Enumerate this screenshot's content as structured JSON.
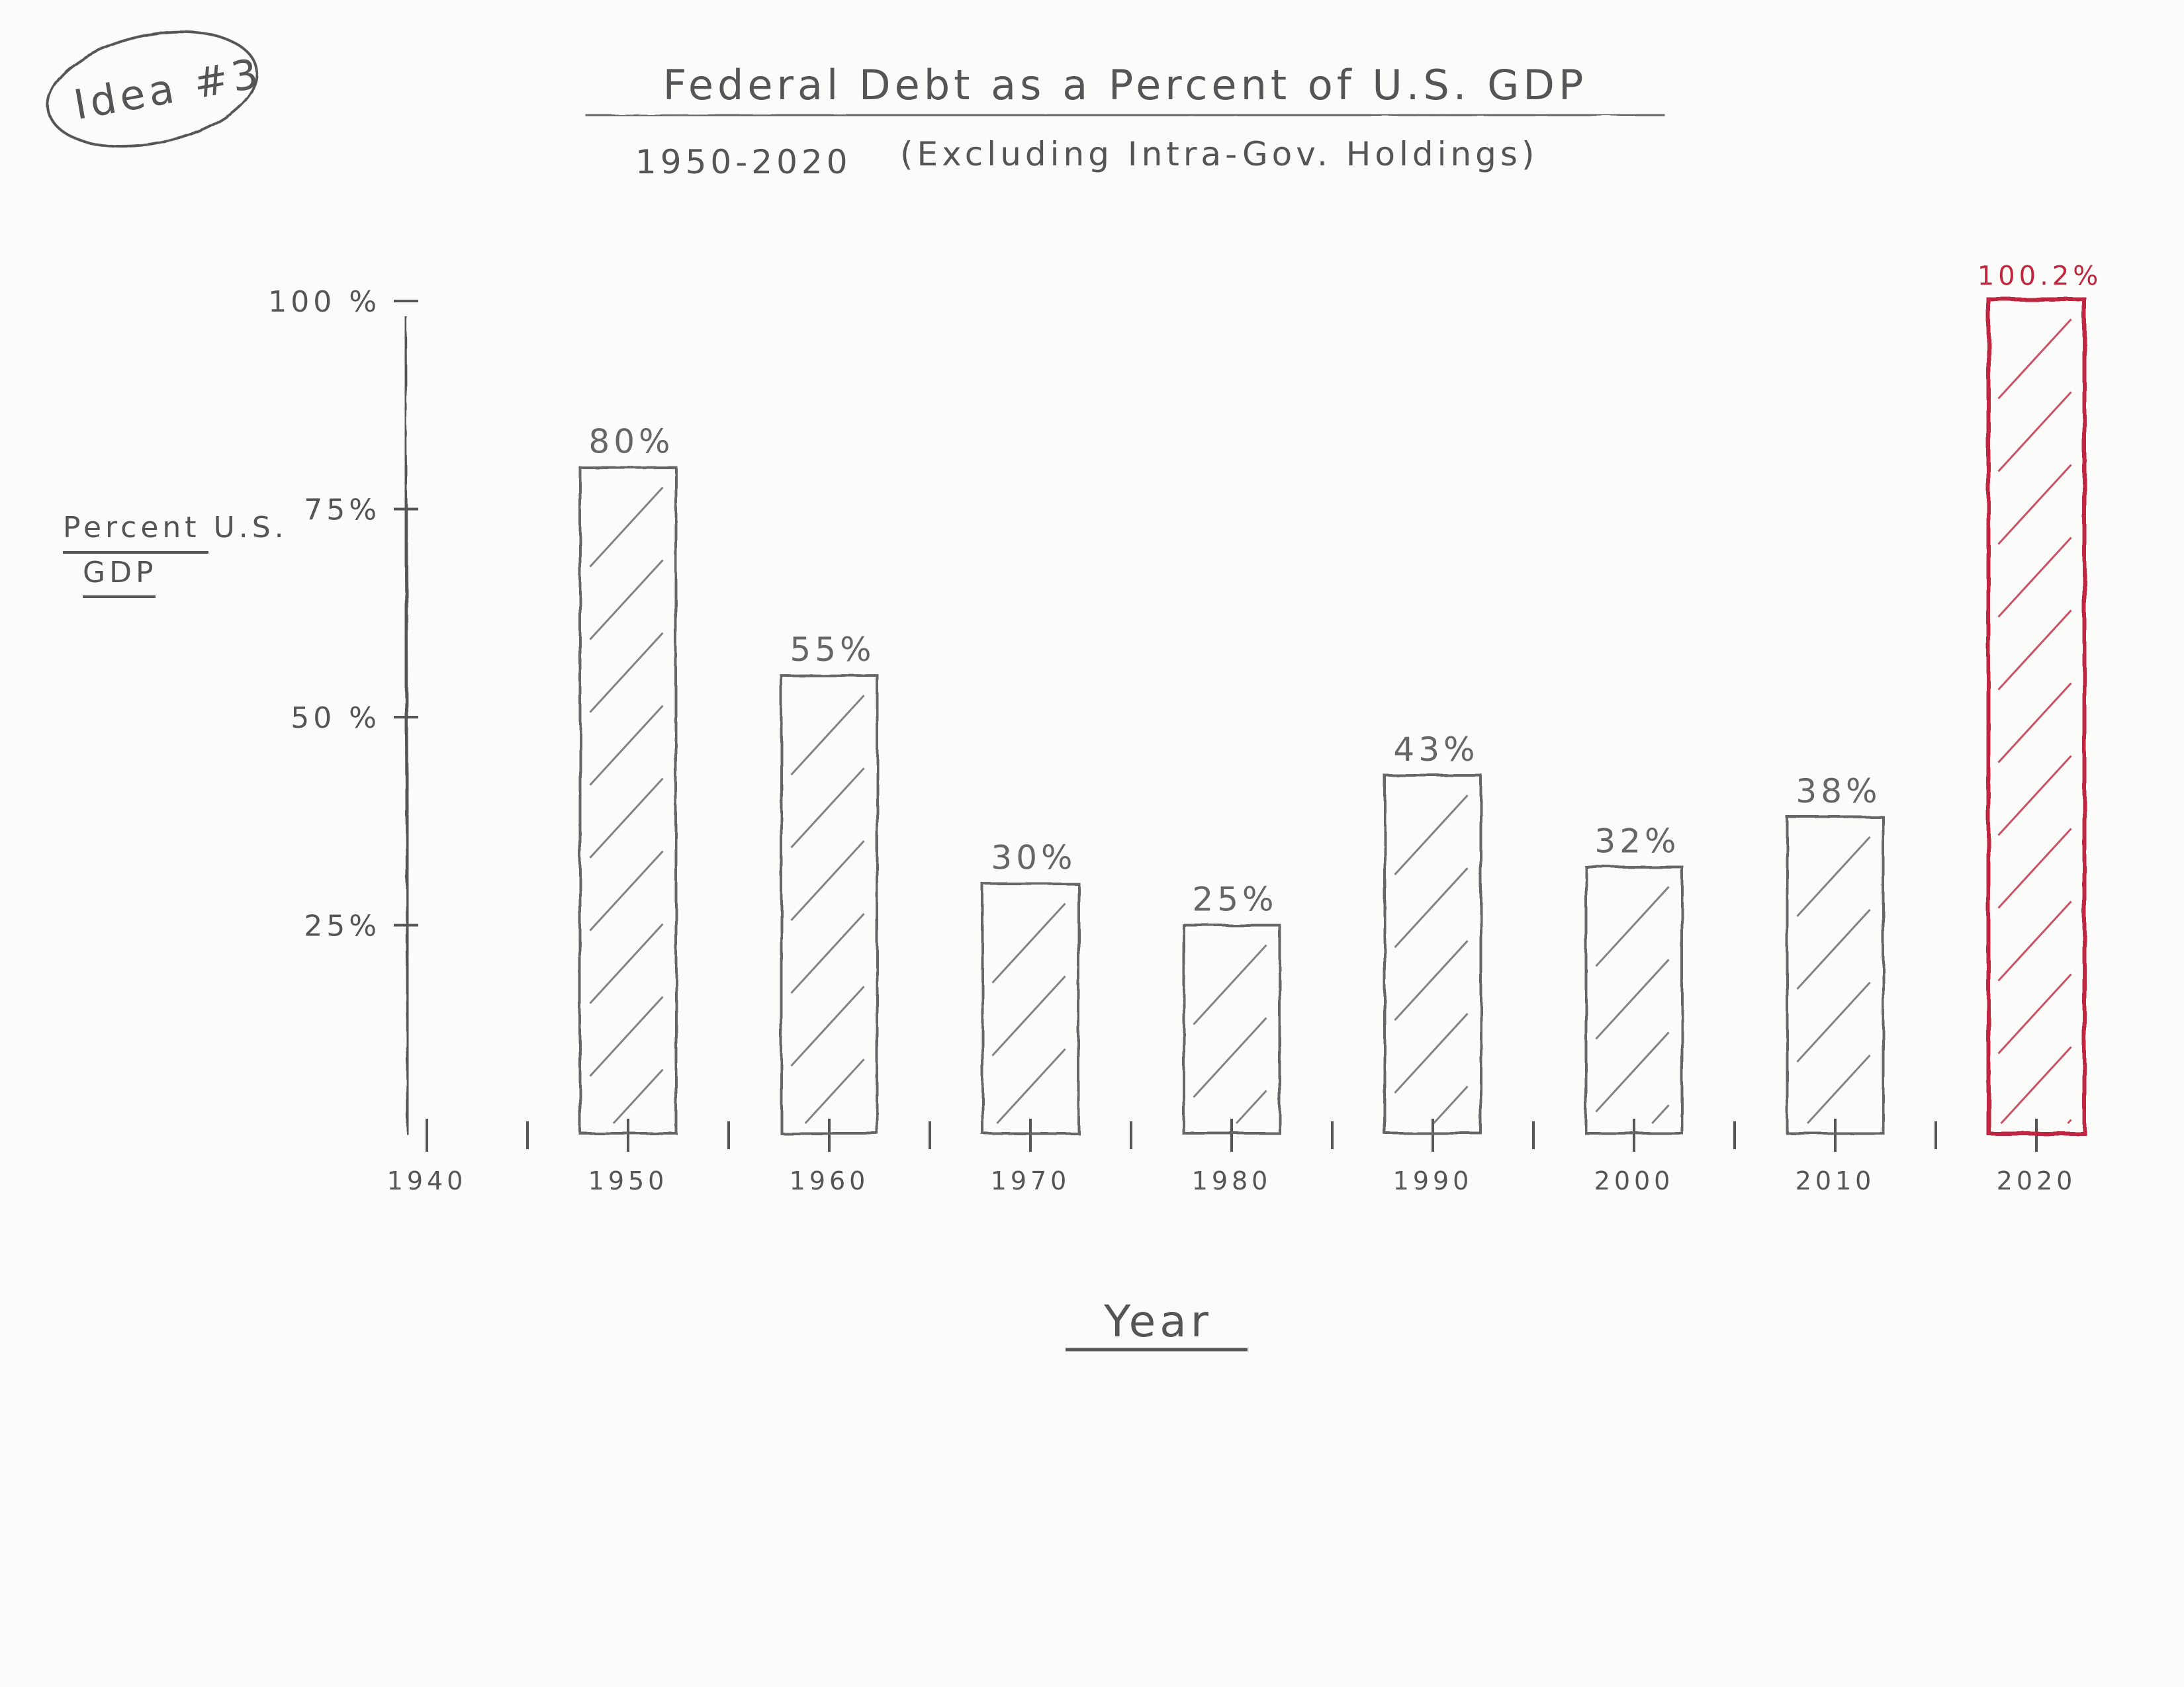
{
  "note": {
    "text": "Idea #3"
  },
  "chart_data": {
    "type": "bar",
    "title": "Federal Debt as a Percent of U.S. GDP",
    "subtitle_years": "1950-2020",
    "subtitle_note": "(Excluding Intra-Gov. Holdings)",
    "xlabel": "Year",
    "ylabel_line1": "Percent U.S.",
    "ylabel_line2": "GDP",
    "x_ticks": [
      "1940",
      "1950",
      "1960",
      "1970",
      "1980",
      "1990",
      "2000",
      "2010",
      "2020"
    ],
    "y_ticks": [
      {
        "value": 25,
        "label": "25%"
      },
      {
        "value": 50,
        "label": "50 %"
      },
      {
        "value": 75,
        "label": "75%"
      },
      {
        "value": 100,
        "label": "100 %"
      }
    ],
    "ylim": [
      0,
      100
    ],
    "categories": [
      "1950",
      "1960",
      "1970",
      "1980",
      "1990",
      "2000",
      "2010",
      "2020"
    ],
    "values": [
      80,
      55,
      30,
      25,
      43,
      32,
      38,
      100.2
    ],
    "value_labels": [
      "80%",
      "55%",
      "30%",
      "25%",
      "43%",
      "32%",
      "38%",
      "100.2%"
    ],
    "bar_colors": [
      "#666666",
      "#666666",
      "#666666",
      "#666666",
      "#666666",
      "#666666",
      "#666666",
      "#c0273f"
    ],
    "grid": false
  }
}
